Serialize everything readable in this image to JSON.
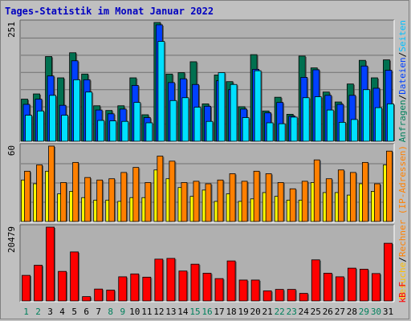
{
  "title": "Tages-Statistik im Monat Januar 2022",
  "colors": {
    "background": "#c0c0c0",
    "plot_bg": "#b0b0b0",
    "hits": "#007050",
    "files": "#0040ff",
    "pages": "#00e0ff",
    "visits": "#ffff00",
    "sites": "#ff8000",
    "kbytes": "#ff0000",
    "day_weekday": "#000000",
    "day_weekend": "#00805c"
  },
  "right_labels": {
    "top": [
      {
        "text": "Anfragen",
        "color": "#00805c"
      },
      {
        "text": "/",
        "color": "#000000"
      },
      {
        "text": "Dateien",
        "color": "#0040ff"
      },
      {
        "text": "/",
        "color": "#000000"
      },
      {
        "text": "Seiten",
        "color": "#00c0ff"
      }
    ],
    "middle": [
      {
        "text": "Besuche",
        "color": "#ffc000"
      },
      {
        "text": "/",
        "color": "#000000"
      },
      {
        "text": "Rechner (IP-Adressen)",
        "color": "#ff8000"
      }
    ],
    "bottom": [
      {
        "text": "kB F",
        "color": "#ff0000"
      }
    ]
  },
  "chart_data": {
    "type": "bar",
    "categories": [
      "1",
      "2",
      "3",
      "4",
      "5",
      "6",
      "7",
      "8",
      "9",
      "10",
      "11",
      "12",
      "13",
      "14",
      "15",
      "16",
      "17",
      "18",
      "19",
      "20",
      "21",
      "22",
      "23",
      "24",
      "25",
      "26",
      "27",
      "28",
      "29",
      "30",
      "31"
    ],
    "weekend_days": [
      "1",
      "2",
      "8",
      "9",
      "15",
      "16",
      "22",
      "23",
      "29",
      "30"
    ],
    "panels": [
      {
        "name": "top",
        "ymax_label": "251",
        "ylim": [
          0,
          251
        ],
        "series": [
          {
            "name": "Anfragen",
            "values": [
              89,
              100,
              179,
              134,
              187,
              142,
              75,
              65,
              75,
              134,
              56,
              251,
              142,
              145,
              168,
              79,
              140,
              126,
              73,
              183,
              64,
              93,
              57,
              180,
              155,
              104,
              83,
              121,
              171,
              134,
              172
            ]
          },
          {
            "name": "Dateien",
            "values": [
              78,
              89,
              138,
              76,
              170,
              130,
              66,
              58,
              68,
              118,
              50,
              246,
              124,
              132,
              120,
              74,
              128,
              109,
              68,
              152,
              60,
              82,
              53,
              135,
              151,
              97,
              78,
              97,
              159,
              112,
              150
            ]
          },
          {
            "name": "Seiten",
            "values": [
              55,
              64,
              97,
              55,
              130,
              104,
              44,
              43,
              42,
              82,
              39,
              211,
              86,
              92,
              72,
              42,
              145,
              120,
              50,
              149,
              39,
              37,
              51,
              92,
              94,
              66,
              40,
              46,
              109,
              71,
              79
            ]
          }
        ]
      },
      {
        "name": "middle",
        "ymax_label": "60",
        "ylim": [
          0,
          60
        ],
        "series": [
          {
            "name": "Besuche",
            "values": [
              33,
              30,
              40,
              22,
              24,
              19,
              17,
              17,
              16,
              19,
              19,
              41,
              34,
              27,
              20,
              25,
              16,
              22,
              16,
              18,
              23,
              20,
              17,
              17,
              31,
              23,
              23,
              21,
              30,
              24,
              45
            ]
          },
          {
            "name": "Rechner",
            "values": [
              40,
              45,
              60,
              31,
              47,
              35,
              33,
              34,
              39,
              43,
              31,
              52,
              48,
              31,
              32,
              30,
              33,
              38,
              32,
              40,
              38,
              31,
              26,
              32,
              49,
              34,
              41,
              39,
              47,
              30,
              56
            ]
          }
        ]
      },
      {
        "name": "bottom",
        "ymax_label": "20479",
        "ylim": [
          0,
          20479
        ],
        "series": [
          {
            "name": "kB F",
            "values": [
              7100,
              9900,
              20479,
              8200,
              13600,
              1200,
              3300,
              3000,
              6700,
              7500,
              6600,
              11600,
              11800,
              8300,
              10200,
              7700,
              6200,
              11100,
              5800,
              5800,
              2800,
              3200,
              3200,
              2100,
              11400,
              7700,
              6700,
              9100,
              8800,
              7600,
              16000
            ]
          }
        ]
      }
    ]
  }
}
